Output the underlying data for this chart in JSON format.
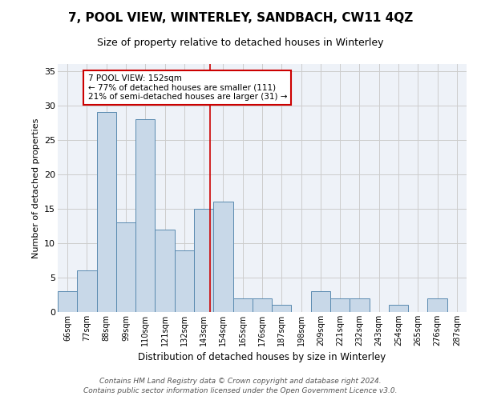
{
  "title": "7, POOL VIEW, WINTERLEY, SANDBACH, CW11 4QZ",
  "subtitle": "Size of property relative to detached houses in Winterley",
  "xlabel": "Distribution of detached houses by size in Winterley",
  "ylabel": "Number of detached properties",
  "footnote1": "Contains HM Land Registry data © Crown copyright and database right 2024.",
  "footnote2": "Contains public sector information licensed under the Open Government Licence v3.0.",
  "bins": [
    "66sqm",
    "77sqm",
    "88sqm",
    "99sqm",
    "110sqm",
    "121sqm",
    "132sqm",
    "143sqm",
    "154sqm",
    "165sqm",
    "176sqm",
    "187sqm",
    "198sqm",
    "209sqm",
    "221sqm",
    "232sqm",
    "243sqm",
    "254sqm",
    "265sqm",
    "276sqm",
    "287sqm"
  ],
  "values": [
    3,
    6,
    29,
    13,
    28,
    12,
    9,
    15,
    16,
    2,
    2,
    1,
    0,
    3,
    2,
    2,
    0,
    1,
    0,
    2,
    0
  ],
  "bar_color": "#c8d8e8",
  "bar_edgecolor": "#5a8ab0",
  "annotation_text": "7 POOL VIEW: 152sqm\n← 77% of detached houses are smaller (111)\n21% of semi-detached houses are larger (31) →",
  "annotation_box_color": "#ffffff",
  "annotation_box_edgecolor": "#cc0000",
  "vline_x": 152,
  "vline_color": "#cc0000",
  "ylim": [
    0,
    36
  ],
  "yticks": [
    0,
    5,
    10,
    15,
    20,
    25,
    30,
    35
  ],
  "grid_color": "#cccccc",
  "bg_color": "#eef2f8",
  "title_fontsize": 11,
  "subtitle_fontsize": 9,
  "axis_label_fontsize": 8,
  "tick_fontsize": 7,
  "annotation_fontsize": 7.5,
  "footnote_fontsize": 6.5
}
